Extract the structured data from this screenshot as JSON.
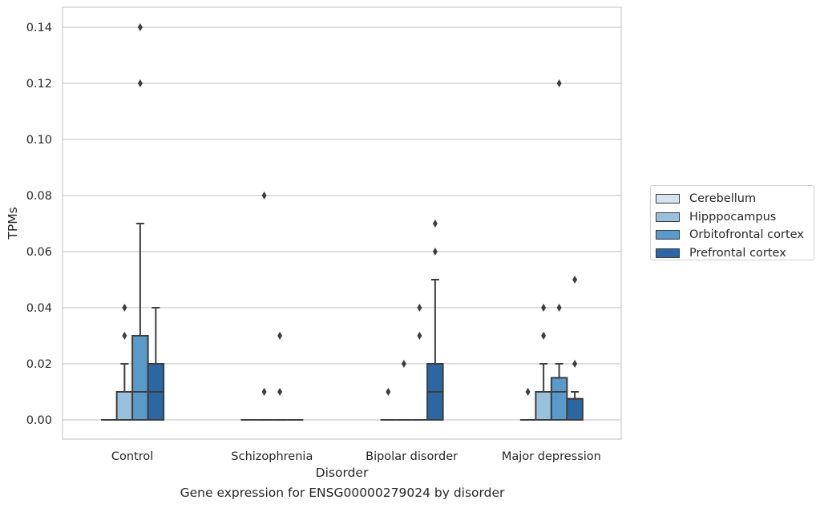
{
  "chart_data": {
    "type": "box",
    "title": "",
    "xlabel": "Disorder",
    "ylabel": "TPMs",
    "caption": "Gene expression for ENSG00000279024 by disorder",
    "ylim": [
      -0.007,
      0.147
    ],
    "yticks": [
      0.0,
      0.02,
      0.04,
      0.06,
      0.08,
      0.1,
      0.12,
      0.14
    ],
    "ytick_labels": [
      "0.00",
      "0.02",
      "0.04",
      "0.06",
      "0.08",
      "0.10",
      "0.12",
      "0.14"
    ],
    "grid": "y",
    "legend_position": "right",
    "categories": [
      "Control",
      "Schizophrenia",
      "Bipolar disorder",
      "Major depression"
    ],
    "series": [
      {
        "name": "Cerebellum",
        "color": "#d5e4f1",
        "boxes": [
          {
            "q1": 0,
            "median": 0,
            "q3": 0,
            "whisker_low": 0,
            "whisker_high": 0,
            "outliers": []
          },
          {
            "q1": 0,
            "median": 0,
            "q3": 0,
            "whisker_low": 0,
            "whisker_high": 0,
            "outliers": []
          },
          {
            "q1": 0,
            "median": 0,
            "q3": 0,
            "whisker_low": 0,
            "whisker_high": 0,
            "outliers": [
              0.01
            ]
          },
          {
            "q1": 0,
            "median": 0,
            "q3": 0,
            "whisker_low": 0,
            "whisker_high": 0,
            "outliers": [
              0.01
            ]
          }
        ]
      },
      {
        "name": "Hipppocampus",
        "color": "#9ac1dc",
        "boxes": [
          {
            "q1": 0,
            "median": 0.01,
            "q3": 0.01,
            "whisker_low": 0,
            "whisker_high": 0.02,
            "outliers": [
              0.03,
              0.04
            ]
          },
          {
            "q1": 0,
            "median": 0,
            "q3": 0,
            "whisker_low": 0,
            "whisker_high": 0,
            "outliers": [
              0.01,
              0.08
            ]
          },
          {
            "q1": 0,
            "median": 0,
            "q3": 0,
            "whisker_low": 0,
            "whisker_high": 0,
            "outliers": [
              0.02
            ]
          },
          {
            "q1": 0,
            "median": 0.01,
            "q3": 0.01,
            "whisker_low": 0,
            "whisker_high": 0.02,
            "outliers": [
              0.03,
              0.04
            ]
          }
        ]
      },
      {
        "name": "Orbitofrontal cortex",
        "color": "#5a9ac8",
        "boxes": [
          {
            "q1": 0,
            "median": 0.01,
            "q3": 0.03,
            "whisker_low": 0,
            "whisker_high": 0.07,
            "outliers": [
              0.12,
              0.14
            ]
          },
          {
            "q1": 0,
            "median": 0,
            "q3": 0,
            "whisker_low": 0,
            "whisker_high": 0,
            "outliers": [
              0.01,
              0.03
            ]
          },
          {
            "q1": 0,
            "median": 0,
            "q3": 0,
            "whisker_low": 0,
            "whisker_high": 0,
            "outliers": [
              0.03,
              0.04
            ]
          },
          {
            "q1": 0,
            "median": 0.01,
            "q3": 0.015,
            "whisker_low": 0,
            "whisker_high": 0.02,
            "outliers": [
              0.04,
              0.12
            ]
          }
        ]
      },
      {
        "name": "Prefrontal cortex",
        "color": "#2c67a3",
        "boxes": [
          {
            "q1": 0,
            "median": 0.01,
            "q3": 0.02,
            "whisker_low": 0,
            "whisker_high": 0.04,
            "outliers": []
          },
          {
            "q1": 0,
            "median": 0,
            "q3": 0,
            "whisker_low": 0,
            "whisker_high": 0,
            "outliers": []
          },
          {
            "q1": 0,
            "median": 0.01,
            "q3": 0.02,
            "whisker_low": 0,
            "whisker_high": 0.05,
            "outliers": [
              0.06,
              0.07
            ]
          },
          {
            "q1": 0,
            "median": 0.0075,
            "q3": 0.0075,
            "whisker_low": 0,
            "whisker_high": 0.01,
            "outliers": [
              0.02,
              0.05
            ]
          }
        ]
      }
    ]
  }
}
